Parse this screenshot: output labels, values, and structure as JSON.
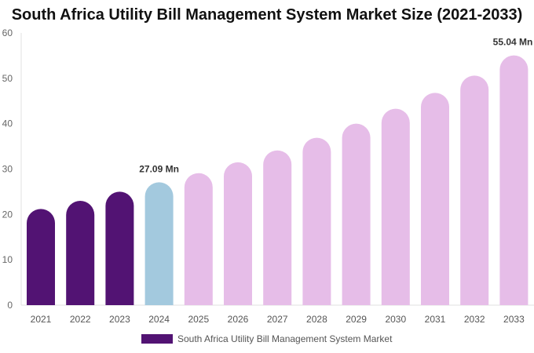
{
  "chart_data": {
    "type": "bar",
    "title": "South Africa Utility Bill Management System Market Size (2021-2033)",
    "categories": [
      "2021",
      "2022",
      "2023",
      "2024",
      "2025",
      "2026",
      "2027",
      "2028",
      "2029",
      "2030",
      "2031",
      "2032",
      "2033"
    ],
    "series": [
      {
        "name": "South Africa Utility Bill Management System Market",
        "values": [
          21.2,
          23.0,
          25.0,
          27.09,
          29.1,
          31.5,
          34.1,
          36.9,
          40.0,
          43.3,
          46.8,
          50.6,
          55.04
        ]
      }
    ],
    "data_labels": {
      "3": "27.09 Mn",
      "12": "55.04 Mn"
    },
    "ylim": [
      0,
      60
    ],
    "yticks": [
      0,
      10,
      20,
      30,
      40,
      50,
      60
    ],
    "xlabel": "",
    "ylabel": "",
    "grid": false,
    "legend": "bottom",
    "colors": {
      "historical": "#521373",
      "base_year": "#a3c9de",
      "forecast": "#e6bde8"
    }
  }
}
